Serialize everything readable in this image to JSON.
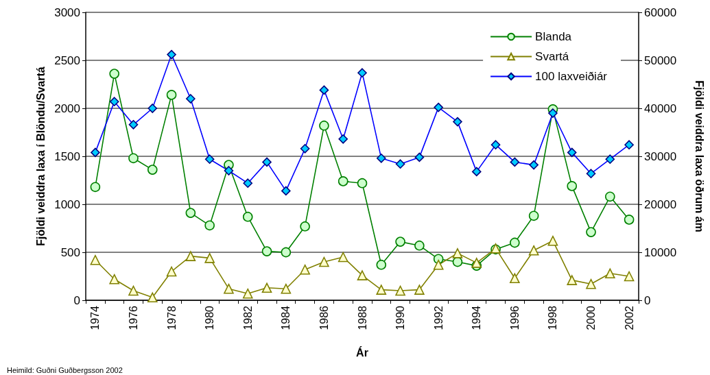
{
  "chart_data": {
    "type": "line",
    "xlabel": "Ár",
    "ylabel": "Fjöldi veiddra laxa í Blöndu/Svartá",
    "y2label": "Fjöldi veiddra laxa öðrum ám",
    "categories": [
      "1974",
      null,
      "1976",
      null,
      "1978",
      null,
      "1980",
      null,
      "1982",
      null,
      "1984",
      null,
      "1986",
      null,
      "1988",
      null,
      "1990",
      null,
      "1992",
      null,
      "1994",
      null,
      "1996",
      null,
      "1998",
      null,
      "2000",
      null,
      "2002"
    ],
    "series": [
      {
        "name": "Blanda",
        "color": "#008000",
        "marker": "circle",
        "values": [
          1180,
          2360,
          1480,
          1360,
          2140,
          910,
          780,
          1410,
          870,
          510,
          500,
          770,
          1820,
          1240,
          1220,
          370,
          610,
          570,
          430,
          400,
          360,
          530,
          600,
          880,
          1990,
          1190,
          710,
          1080,
          840
        ]
      },
      {
        "name": "Svartá",
        "color": "#808000",
        "marker": "triangle",
        "values": [
          420,
          220,
          100,
          30,
          300,
          460,
          440,
          120,
          70,
          130,
          120,
          320,
          400,
          450,
          260,
          110,
          100,
          110,
          370,
          490,
          390,
          540,
          230,
          520,
          620,
          210,
          170,
          280,
          250
        ]
      },
      {
        "name": "100 laxveiðiár",
        "color": "#0000ff",
        "marker": "diamond",
        "axis": "y2",
        "values": [
          30800,
          41400,
          36600,
          40000,
          51200,
          42000,
          29400,
          27000,
          24400,
          28800,
          22800,
          31600,
          43800,
          33600,
          47400,
          29600,
          28400,
          29800,
          40200,
          37200,
          26800,
          32400,
          28800,
          28200,
          39000,
          30800,
          26400,
          29400,
          32400
        ]
      }
    ],
    "ylim": [
      0,
      3000
    ],
    "yticks": [
      0,
      500,
      1000,
      1500,
      2000,
      2500,
      3000
    ],
    "y2lim": [
      0,
      60000
    ],
    "y2ticks": [
      0,
      10000,
      20000,
      30000,
      40000,
      50000,
      60000
    ],
    "grid": "y",
    "legend": "top right",
    "annotations": [
      "Heimild: Guðni Guðbergsson 2002"
    ]
  }
}
